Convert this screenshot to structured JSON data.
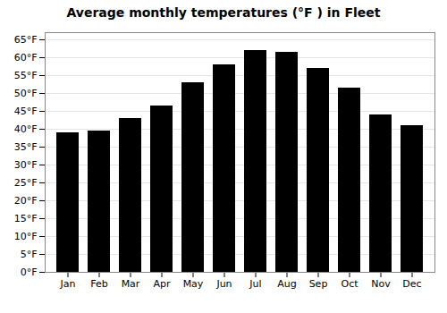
{
  "chart_data": {
    "type": "bar",
    "title": "Average monthly temperatures (°F ) in Fleet",
    "categories": [
      "Jan",
      "Feb",
      "Mar",
      "Apr",
      "May",
      "Jun",
      "Jul",
      "Aug",
      "Sep",
      "Oct",
      "Nov",
      "Dec"
    ],
    "values": [
      39.0,
      39.5,
      43.0,
      46.5,
      53.0,
      58.0,
      62.0,
      61.5,
      57.0,
      51.5,
      44.0,
      41.0
    ],
    "ylim": [
      0,
      67
    ],
    "yticks": [
      {
        "value": 0,
        "label": "0°F"
      },
      {
        "value": 5,
        "label": "5°F"
      },
      {
        "value": 10,
        "label": "10°F"
      },
      {
        "value": 15,
        "label": "15°F"
      },
      {
        "value": 20,
        "label": "20°F"
      },
      {
        "value": 25,
        "label": "25°F"
      },
      {
        "value": 30,
        "label": "30°F"
      },
      {
        "value": 35,
        "label": "35°F"
      },
      {
        "value": 40,
        "label": "40°F"
      },
      {
        "value": 45,
        "label": "45°F"
      },
      {
        "value": 50,
        "label": "50°F"
      },
      {
        "value": 55,
        "label": "55°F"
      },
      {
        "value": 60,
        "label": "60°F"
      },
      {
        "value": 65,
        "label": "65°F"
      }
    ],
    "grid": true
  }
}
